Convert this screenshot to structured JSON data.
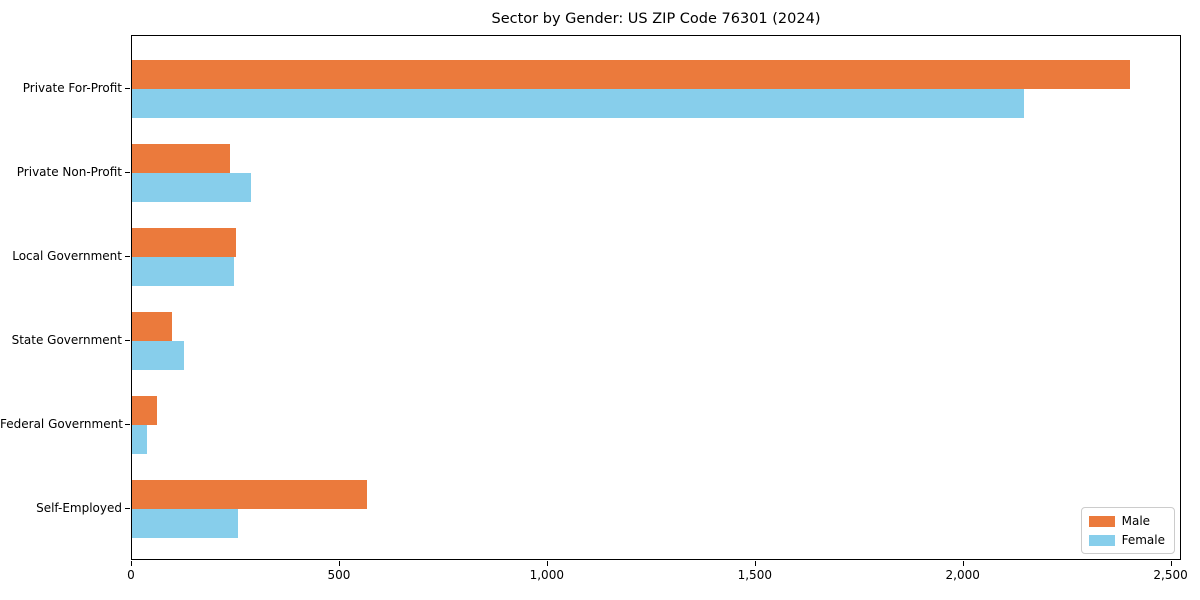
{
  "chart_data": {
    "type": "bar",
    "orientation": "horizontal",
    "title": "Sector by Gender: US ZIP Code 76301 (2024)",
    "xlabel": "",
    "ylabel": "",
    "categories": [
      "Private For-Profit",
      "Private Non-Profit",
      "Local Government",
      "State Government",
      "Federal Government",
      "Self-Employed"
    ],
    "series": [
      {
        "name": "Male",
        "color": "#EB7A3C",
        "values": [
          2400,
          235,
          250,
          95,
          60,
          565
        ]
      },
      {
        "name": "Female",
        "color": "#87CEEB",
        "values": [
          2145,
          285,
          245,
          125,
          35,
          255
        ]
      }
    ],
    "xlim": [
      0,
      2525
    ],
    "xticks": {
      "values": [
        0,
        500,
        1000,
        1500,
        2000,
        2500
      ],
      "labels": [
        "0",
        "500",
        "1,000",
        "1,500",
        "2,000",
        "2,500"
      ]
    },
    "legend": {
      "position": "lower right"
    },
    "grid": false
  }
}
